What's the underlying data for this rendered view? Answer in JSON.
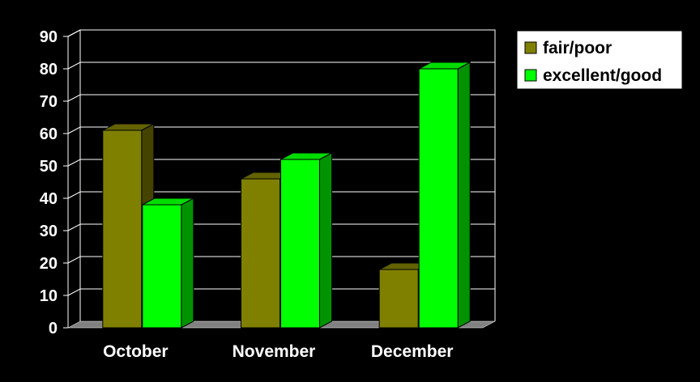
{
  "chart_data": {
    "type": "bar",
    "categories": [
      "October",
      "November",
      "December"
    ],
    "series": [
      {
        "name": "fair/poor",
        "values": [
          61,
          46,
          18
        ],
        "color": "#808000",
        "top_color": "#626200",
        "side_color": "#444400"
      },
      {
        "name": "excellent/good",
        "values": [
          38,
          52,
          80
        ],
        "color": "#00ff00",
        "top_color": "#00dd00",
        "side_color": "#009300"
      }
    ],
    "ylim": [
      0,
      90
    ],
    "yticks": [
      "0",
      "10",
      "20",
      "30",
      "40",
      "50",
      "60",
      "70",
      "80",
      "90"
    ],
    "title": "",
    "xlabel": "",
    "ylabel": "",
    "grid": true,
    "legend_position": "top-right",
    "colors": {
      "background": "#000000",
      "grid": "#ffffff",
      "floor": "#808080",
      "legend_bg": "#ffffff"
    }
  }
}
